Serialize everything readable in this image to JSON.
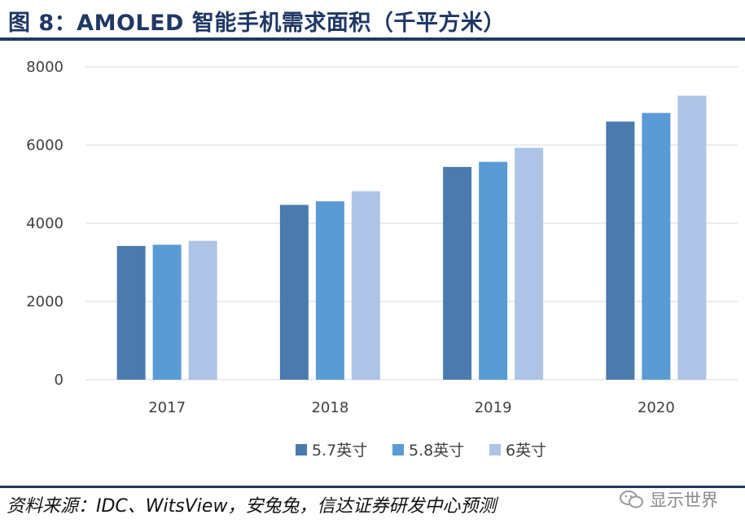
{
  "title": "图 8：AMOLED 智能手机需求面积（千平方米）",
  "source": "资料来源：IDC、WitsView，安兔兔，信达证券研发中心预测",
  "watermark": "显示世界",
  "chart_data": {
    "type": "bar",
    "title": "图 8：AMOLED 智能手机需求面积（千平方米）",
    "categories": [
      "2017",
      "2018",
      "2019",
      "2020"
    ],
    "series": [
      {
        "name": "5.7英寸",
        "values": [
          3420,
          4470,
          5440,
          6600
        ],
        "color": "#4a7aae"
      },
      {
        "name": "5.8英寸",
        "values": [
          3450,
          4560,
          5570,
          6820
        ],
        "color": "#5b9bd5"
      },
      {
        "name": "6英寸",
        "values": [
          3550,
          4820,
          5930,
          7260
        ],
        "color": "#adc4e6"
      }
    ],
    "yticks": [
      0,
      2000,
      4000,
      6000,
      8000
    ],
    "ylim": [
      0,
      8000
    ],
    "grid": true,
    "legend_position": "bottom"
  }
}
